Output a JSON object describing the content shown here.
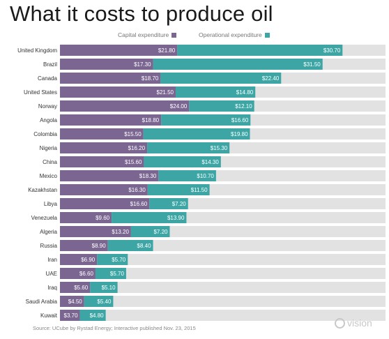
{
  "chart_data": {
    "type": "bar",
    "orientation": "horizontal",
    "stacked": true,
    "title": "What it costs to produce oil",
    "legend_position": "top",
    "categories": [
      "United Kingdom",
      "Brazil",
      "Canada",
      "United States",
      "Norway",
      "Angola",
      "Colombia",
      "Nigeria",
      "China",
      "Mexico",
      "Kazakhstan",
      "Libya",
      "Venezuela",
      "Algeria",
      "Russia",
      "Iran",
      "UAE",
      "Iraq",
      "Saudi Arabia",
      "Kuwait"
    ],
    "series": [
      {
        "name": "Capital expenditure",
        "color": "#7b6691",
        "values": [
          21.8,
          17.3,
          18.7,
          21.5,
          24.0,
          18.8,
          15.5,
          16.2,
          15.6,
          18.3,
          16.3,
          16.6,
          9.6,
          13.2,
          8.9,
          6.9,
          6.6,
          5.6,
          4.5,
          3.7
        ],
        "labels": [
          "$21.80",
          "$17.30",
          "$18.70",
          "$21.50",
          "$24.00",
          "$18.80",
          "$15.50",
          "$16.20",
          "$15.60",
          "$18.30",
          "$16.30",
          "$16.60",
          "$9.60",
          "$13.20",
          "$8.90",
          "$6.90",
          "$6.60",
          "$5.60",
          "$4.50",
          "$3.70"
        ]
      },
      {
        "name": "Operational expenditure",
        "color": "#3ea5a5",
        "values": [
          30.7,
          31.5,
          22.4,
          14.8,
          12.1,
          16.6,
          19.8,
          15.3,
          14.3,
          10.7,
          11.5,
          7.2,
          13.9,
          7.2,
          8.4,
          5.7,
          5.7,
          5.1,
          5.4,
          4.8
        ],
        "labels": [
          "$30.70",
          "$31.50",
          "$22.40",
          "$14.80",
          "$12.10",
          "$16.60",
          "$19.80",
          "$15.30",
          "$14.30",
          "$10.70",
          "$11.50",
          "$7.20",
          "$13.90",
          "$7.20",
          "$8.40",
          "$5.70",
          "$5.70",
          "$5.10",
          "$5.40",
          "$4.80"
        ]
      }
    ],
    "xlim": [
      0,
      55
    ],
    "background_bar_color": "#e2e2e2"
  },
  "source": "Source: UCube by Rystad Energy; Interactive published Nov. 23, 2015",
  "watermark": "vision"
}
